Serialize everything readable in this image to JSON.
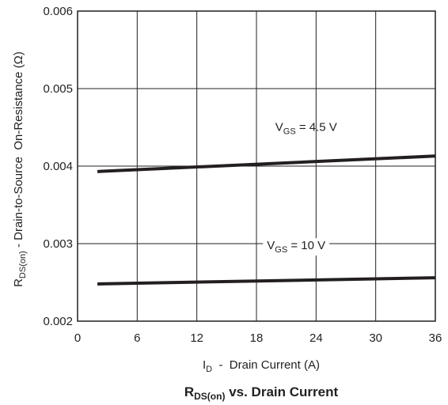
{
  "chart_data": {
    "type": "line",
    "title": {
      "main": "R",
      "sub": "DS(on)",
      "rest": " vs. Drain Current"
    },
    "xlabel": {
      "main": "I",
      "sub": "D",
      "rest": "  -  Drain Current (A)"
    },
    "ylabel": {
      "main": "R",
      "sub": "DS(on)",
      "rest": " - Drain-to-Source  On-Resistance (Ω)"
    },
    "xlim": [
      0,
      36
    ],
    "ylim": [
      0.002,
      0.006
    ],
    "x_ticks": [
      "0",
      "6",
      "12",
      "18",
      "24",
      "30",
      "36"
    ],
    "y_ticks": [
      "0.002",
      "0.003",
      "0.004",
      "0.005",
      "0.006"
    ],
    "grid": true,
    "series": [
      {
        "name": {
          "main": "V",
          "sub": "GS",
          "rest": " = 4.5 V"
        },
        "x": [
          2,
          36
        ],
        "y": [
          0.00393,
          0.00413
        ]
      },
      {
        "name": {
          "main": "V",
          "sub": "GS",
          "rest": " = 10 V"
        },
        "x": [
          2,
          36
        ],
        "y": [
          0.00248,
          0.00256
        ]
      }
    ]
  }
}
